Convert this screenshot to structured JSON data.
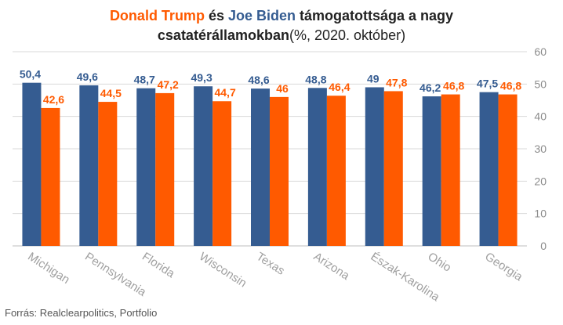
{
  "title": {
    "trump": "Donald Trump",
    "es": " és ",
    "biden": "Joe Biden",
    "rest1": " támogatottsága a nagy",
    "line2_bold": "csatatérállamokban",
    "line2_normal": "(%, 2020. október)"
  },
  "source": "Forrás: Realclearpolitics, Portfolio",
  "colors": {
    "trump": "#FF5A00",
    "biden": "#355C91",
    "grid": "#D9D9D9",
    "axis_text": "#8C8C8C",
    "category_text": "#A0A0A0"
  },
  "chart_data": {
    "type": "bar",
    "categories": [
      "Michigan",
      "Pennsylvania",
      "Florida",
      "Wisconsin",
      "Texas",
      "Arizona",
      "Észak-Karolina",
      "Ohio",
      "Georgia"
    ],
    "series": [
      {
        "name": "Joe Biden",
        "color": "#355C91",
        "values": [
          50.4,
          49.6,
          48.7,
          49.3,
          48.6,
          48.8,
          49,
          46.2,
          47.5
        ],
        "labels": [
          "50,4",
          "49,6",
          "48,7",
          "49,3",
          "48,6",
          "48,8",
          "49",
          "46,2",
          "47,5"
        ]
      },
      {
        "name": "Donald Trump",
        "color": "#FF5A00",
        "values": [
          42.6,
          44.5,
          47.2,
          44.7,
          46,
          46.4,
          47.8,
          46.8,
          46.8
        ],
        "labels": [
          "42,6",
          "44,5",
          "47,2",
          "44,7",
          "46",
          "46,4",
          "47,8",
          "46,8",
          "46,8"
        ]
      }
    ],
    "yticks": [
      0,
      10,
      20,
      30,
      40,
      50,
      60
    ],
    "ylim": [
      0,
      60
    ],
    "y_axis_side": "right",
    "grid": true,
    "legend": "none"
  }
}
